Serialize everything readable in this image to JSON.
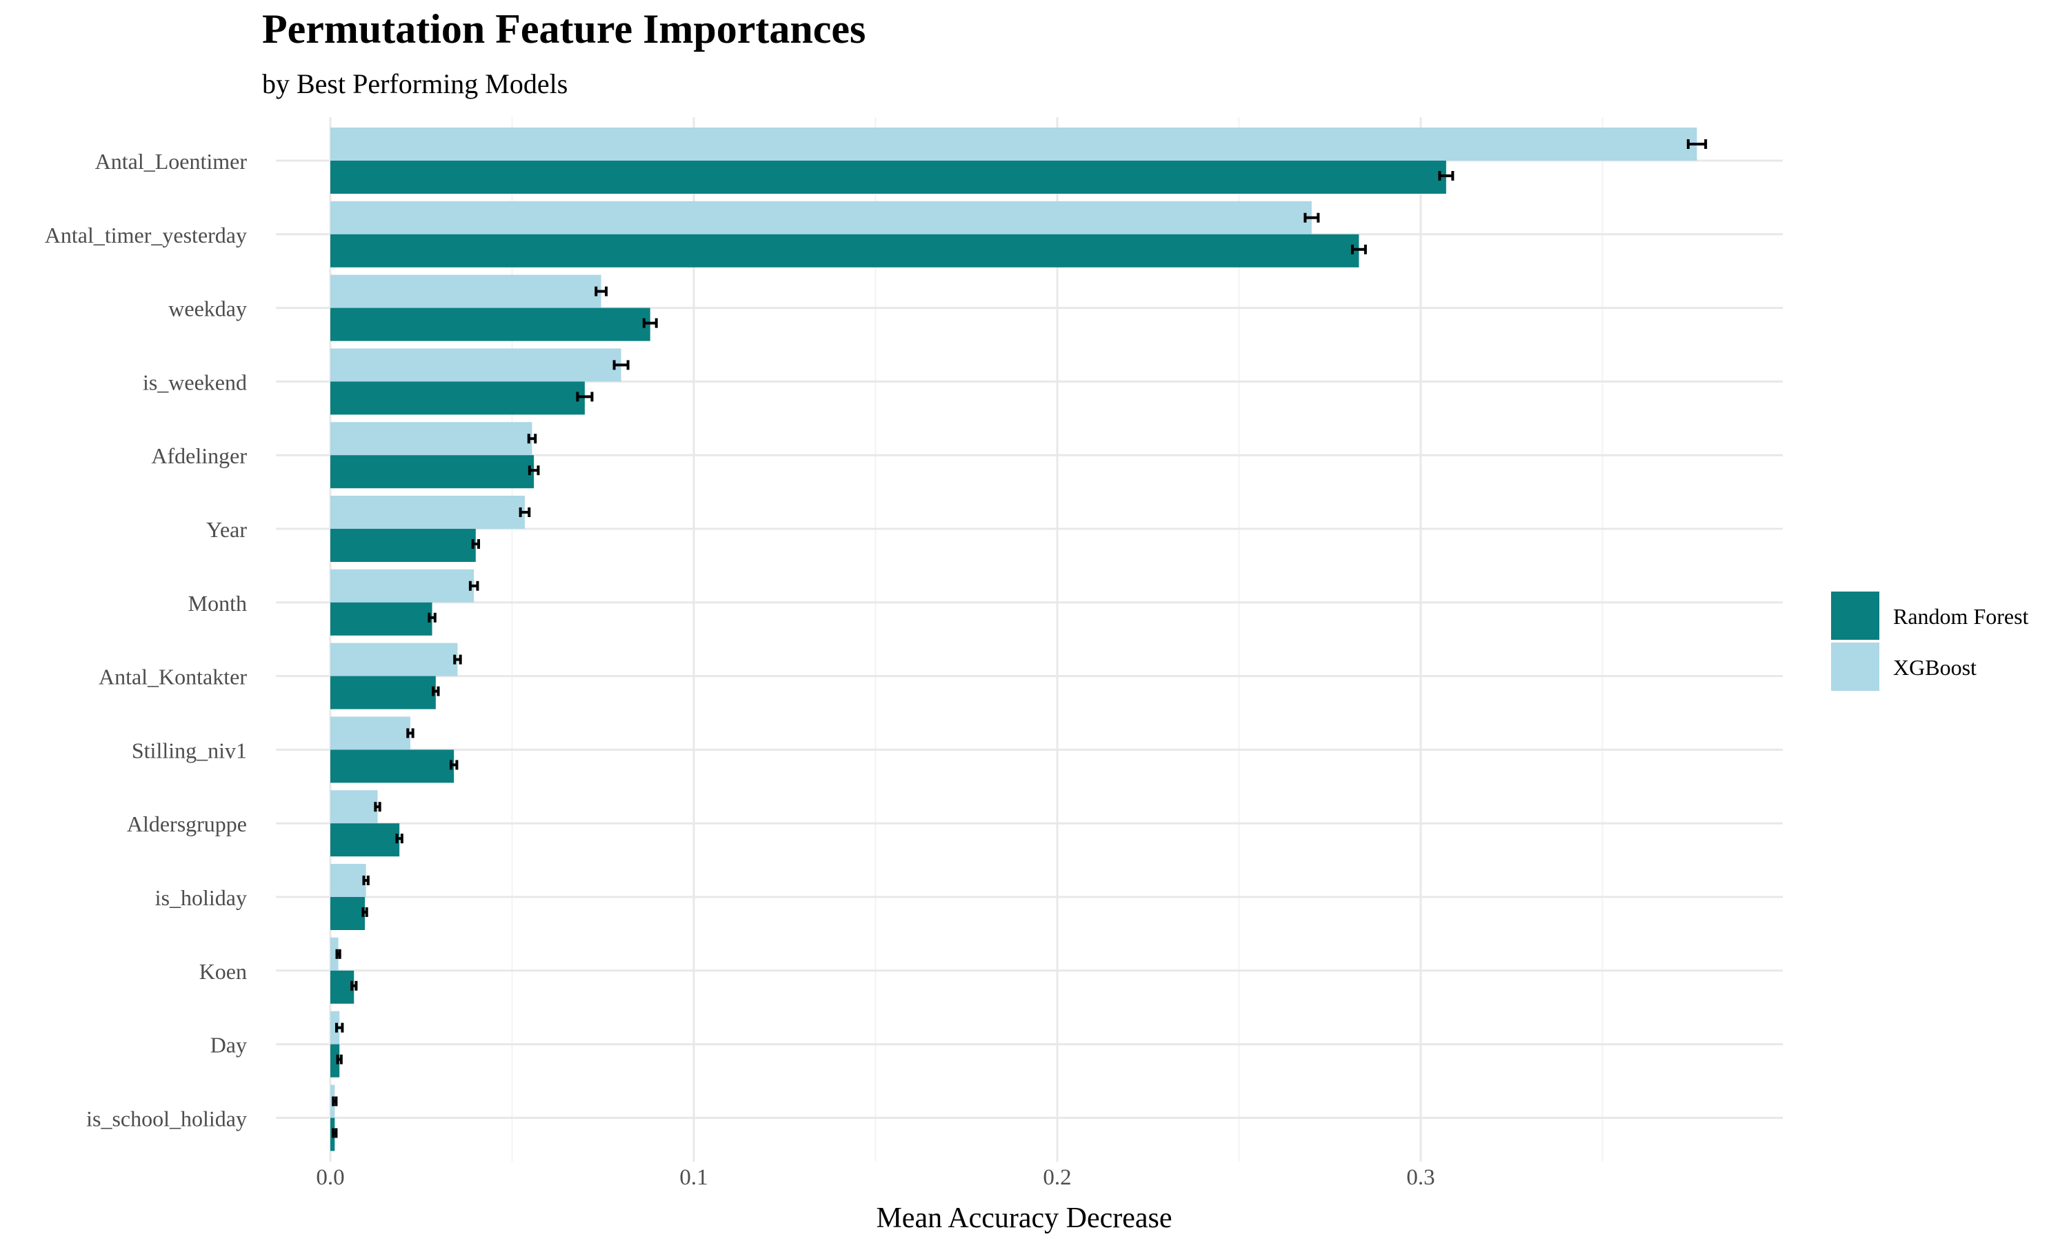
{
  "chart_data": {
    "type": "bar",
    "orientation": "horizontal",
    "title": "Permutation Feature Importances",
    "subtitle": "by Best Performing Models",
    "xlabel": "Mean Accuracy Decrease",
    "ylabel": "",
    "xlim": [
      0,
      0.4
    ],
    "x_ticks": [
      0.0,
      0.1,
      0.2,
      0.3
    ],
    "x_tick_labels": [
      "0.0",
      "0.1",
      "0.2",
      "0.3"
    ],
    "grid": true,
    "legend_position": "right",
    "categories": [
      "Antal_Loentimer",
      "Antal_timer_yesterday",
      "weekday",
      "is_weekend",
      "Afdelinger",
      "Year",
      "Month",
      "Antal_Kontakter",
      "Stilling_niv1",
      "Aldersgruppe",
      "is_holiday",
      "Koen",
      "Day",
      "is_school_holiday"
    ],
    "series": [
      {
        "name": "Random Forest",
        "color": "#0a7f80",
        "values": [
          0.307,
          0.283,
          0.088,
          0.07,
          0.056,
          0.04,
          0.028,
          0.029,
          0.034,
          0.019,
          0.0095,
          0.0065,
          0.0025,
          0.0012
        ],
        "errors": [
          0.0018,
          0.0018,
          0.0017,
          0.002,
          0.0012,
          0.0008,
          0.0008,
          0.0007,
          0.0008,
          0.0007,
          0.0005,
          0.0006,
          0.0005,
          0.0004
        ]
      },
      {
        "name": "XGBoost",
        "color": "#add8e6",
        "values": [
          0.376,
          0.27,
          0.0745,
          0.08,
          0.0555,
          0.0535,
          0.0395,
          0.035,
          0.022,
          0.013,
          0.0098,
          0.0022,
          0.0025,
          0.0012
        ],
        "errors": [
          0.0024,
          0.0018,
          0.0014,
          0.0019,
          0.0009,
          0.0012,
          0.001,
          0.0008,
          0.0007,
          0.0006,
          0.0006,
          0.0004,
          0.0008,
          0.0004
        ]
      }
    ]
  }
}
